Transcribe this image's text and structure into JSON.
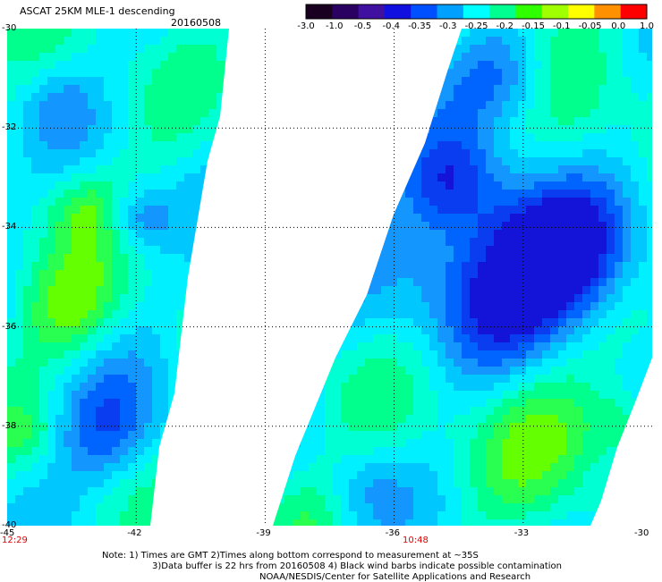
{
  "title": "ASCAT 25KM MLE-1 descending",
  "date": "20160508",
  "colorbar": {
    "labels": [
      "-3.0",
      "-1.0",
      "-0.5",
      "-0.4",
      "-0.35",
      "-0.3",
      "-0.25",
      "-0.2",
      "-0.15",
      "-0.1",
      "-0.05",
      "0.0",
      "1.0"
    ],
    "colors": [
      "#1a0020",
      "#2a0060",
      "#4010a0",
      "#1010e0",
      "#0050ff",
      "#00a0ff",
      "#00ffff",
      "#00ff90",
      "#30ff00",
      "#a0ff00",
      "#ffff00",
      "#ff9000",
      "#ff0000"
    ]
  },
  "axes": {
    "lat_labels": [
      "-30",
      "-32",
      "-34",
      "-36",
      "-38",
      "-40"
    ],
    "lon_labels": [
      "-45",
      "-42",
      "-39",
      "-36",
      "-33",
      "-30"
    ]
  },
  "pass_times": [
    "12:29",
    "10:48"
  ],
  "notes": [
    "Note: 1) Times are GMT 2)Times along bottom correspond to measurement at ~35S",
    "3)Data buffer is 22 hrs from 20160508 4) Black wind barbs indicate possible contamination",
    "NOAA/NESDIS/Center for Satellite Applications and Research"
  ]
}
